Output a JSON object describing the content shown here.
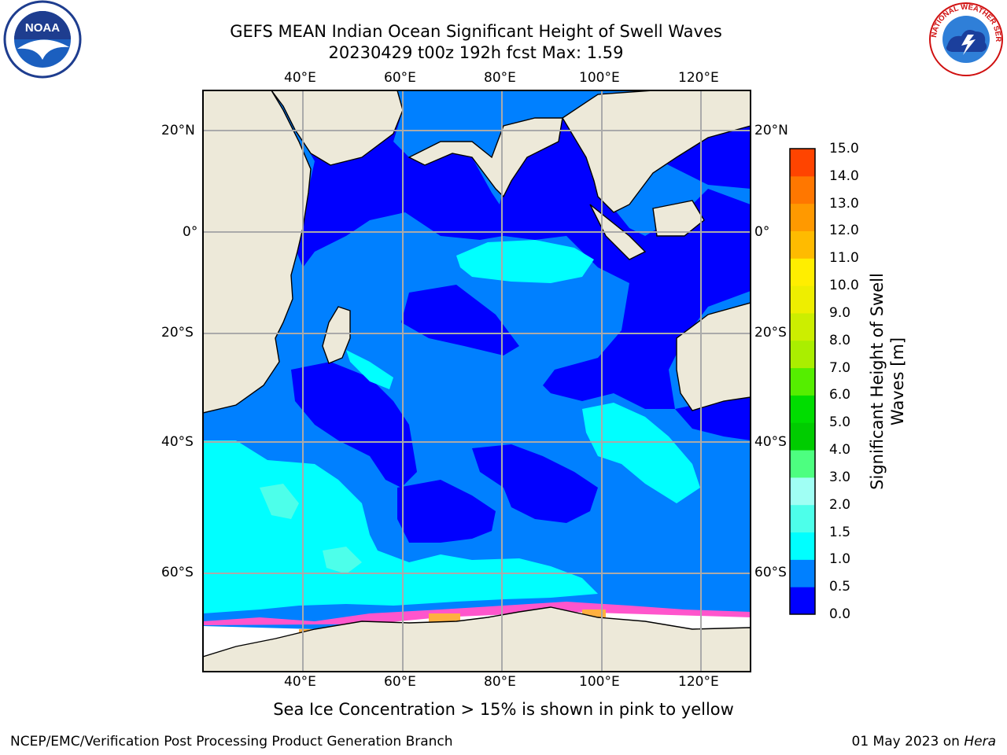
{
  "header": {
    "title_line1": "GEFS MEAN Indian Ocean Significant Height of Swell Waves",
    "title_line2": "20230429 t00z 192h fcst   Max: 1.59"
  },
  "logos": {
    "left": {
      "icon": "noaa-logo-icon",
      "text": "NOAA"
    },
    "right": {
      "icon": "national-weather-service-logo-icon",
      "text": "NATIONAL WEATHER SERVICE"
    }
  },
  "map": {
    "lon_labels": [
      "40°E",
      "60°E",
      "80°E",
      "100°E",
      "120°E"
    ],
    "lat_labels": [
      "20°N",
      "0°",
      "20°S",
      "40°S",
      "60°S"
    ],
    "extent": {
      "lon_min": 20,
      "lon_max": 130,
      "lat_min": -73,
      "lat_max": 28
    },
    "colors": {
      "land": "#ede9d9",
      "ice_white": "#ffffff",
      "grid": "#aaaaaa"
    }
  },
  "colorbar": {
    "label": "Significant Height of Swell Waves [m]",
    "ticks": [
      "0.0",
      "0.5",
      "1.0",
      "1.5",
      "2.0",
      "3.0",
      "4.0",
      "5.0",
      "6.0",
      "7.0",
      "8.0",
      "9.0",
      "10.0",
      "11.0",
      "12.0",
      "13.0",
      "14.0",
      "15.0"
    ],
    "colors": [
      "#0000ff",
      "#0080ff",
      "#00ffff",
      "#4dffea",
      "#a0fff4",
      "#4dff80",
      "#00cc00",
      "#00dd00",
      "#55ee00",
      "#aaee00",
      "#ccee00",
      "#eeee00",
      "#ffee00",
      "#ffbb00",
      "#ff9900",
      "#ff7700",
      "#ff4400",
      "#ff0000"
    ]
  },
  "caption": "Sea Ice Concentration > 15% is shown in pink to yellow",
  "footer": {
    "left": "NCEP/EMC/Verification Post Processing Product Generation Branch",
    "right_date": "01 May 2023 on ",
    "right_machine": "Hera"
  }
}
